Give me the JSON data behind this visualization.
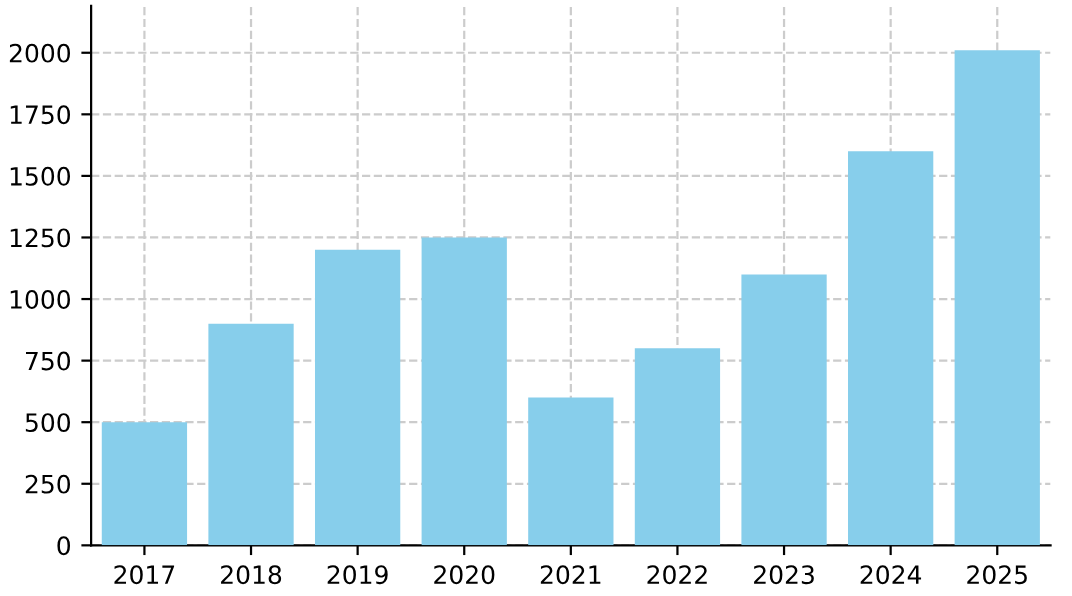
{
  "chart_data": {
    "type": "bar",
    "categories": [
      "2017",
      "2018",
      "2019",
      "2020",
      "2021",
      "2022",
      "2023",
      "2024",
      "2025"
    ],
    "values": [
      500,
      900,
      1200,
      1250,
      600,
      800,
      1100,
      1600,
      2010
    ],
    "color": "#87ceeb",
    "ylim": [
      0,
      2190
    ],
    "yticks": [
      0,
      250,
      500,
      750,
      1000,
      1250,
      1500,
      1750,
      2000
    ],
    "grid": true,
    "line_style": "dashed"
  }
}
